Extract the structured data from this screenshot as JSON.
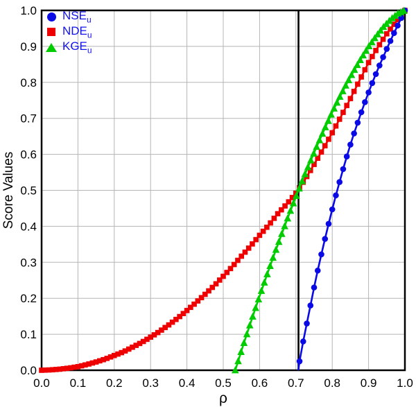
{
  "figure": {
    "background": "#ffffff",
    "frame_color": "#000000",
    "grid_color": "#b5b5b5",
    "text_color": "#000000"
  },
  "legend": {
    "text_color": "#1111ee",
    "items": [
      {
        "label": "NSE",
        "sub": "u",
        "marker": "circle",
        "color": "#0a0ae6"
      },
      {
        "label": "NDE",
        "sub": "u",
        "marker": "square",
        "color": "#ee0000"
      },
      {
        "label": "KGE",
        "sub": "u",
        "marker": "triangle",
        "color": "#00cc00"
      }
    ]
  },
  "chart_data": {
    "type": "line",
    "title": "",
    "xlabel": "ρ",
    "ylabel": "Score Values",
    "xlim": [
      0.0,
      1.0
    ],
    "ylim": [
      0.0,
      1.0
    ],
    "grid": true,
    "legend_position": "top-left",
    "xticks": [
      "0.0",
      "0.1",
      "0.2",
      "0.3",
      "0.4",
      "0.5",
      "0.6",
      "0.7",
      "0.8",
      "0.9",
      "1.0"
    ],
    "yticks": [
      "0.0",
      "0.1",
      "0.2",
      "0.3",
      "0.4",
      "0.5",
      "0.6",
      "0.7",
      "0.8",
      "0.9",
      "1.0"
    ],
    "vline": {
      "x": 0.7071,
      "color": "#000000",
      "width": 2.6,
      "zorder": 2.5
    },
    "series": [
      {
        "name": "NSE_u",
        "color": "#0a0ae6",
        "marker": "circle",
        "marker_size": 8.6,
        "marker_start": 0.71,
        "marker_step": 0.01,
        "line_width": 2.6,
        "zorder": 3,
        "points": [
          [
            0.7066,
            0.0
          ],
          [
            0.71,
            0.025
          ],
          [
            0.72,
            0.08
          ],
          [
            0.73,
            0.13
          ],
          [
            0.74,
            0.18
          ],
          [
            0.75,
            0.23
          ],
          [
            0.76,
            0.277
          ],
          [
            0.77,
            0.322
          ],
          [
            0.78,
            0.365
          ],
          [
            0.79,
            0.407
          ],
          [
            0.8,
            0.447
          ],
          [
            0.81,
            0.486
          ],
          [
            0.82,
            0.523
          ],
          [
            0.83,
            0.559
          ],
          [
            0.84,
            0.594
          ],
          [
            0.85,
            0.627
          ],
          [
            0.86,
            0.658
          ],
          [
            0.87,
            0.688
          ],
          [
            0.88,
            0.717
          ],
          [
            0.89,
            0.745
          ],
          [
            0.9,
            0.772
          ],
          [
            0.91,
            0.798
          ],
          [
            0.92,
            0.823
          ],
          [
            0.93,
            0.847
          ],
          [
            0.94,
            0.87
          ],
          [
            0.95,
            0.893
          ],
          [
            0.96,
            0.915
          ],
          [
            0.97,
            0.937
          ],
          [
            0.98,
            0.958
          ],
          [
            0.99,
            0.979
          ],
          [
            1.0,
            1.0
          ]
        ]
      },
      {
        "name": "NDE_u",
        "color": "#ee0000",
        "marker": "square",
        "marker_size": 7.6,
        "marker_start": 0.0,
        "marker_step": 0.01,
        "line_width": 2.6,
        "zorder": 2,
        "points": [
          [
            0.0,
            0.0
          ],
          [
            0.025,
            0.001
          ],
          [
            0.05,
            0.003
          ],
          [
            0.075,
            0.006
          ],
          [
            0.1,
            0.01
          ],
          [
            0.125,
            0.016
          ],
          [
            0.15,
            0.023
          ],
          [
            0.175,
            0.031
          ],
          [
            0.2,
            0.041
          ],
          [
            0.225,
            0.051
          ],
          [
            0.25,
            0.064
          ],
          [
            0.275,
            0.077
          ],
          [
            0.3,
            0.092
          ],
          [
            0.325,
            0.108
          ],
          [
            0.35,
            0.126
          ],
          [
            0.375,
            0.145
          ],
          [
            0.4,
            0.166
          ],
          [
            0.425,
            0.188
          ],
          [
            0.45,
            0.211
          ],
          [
            0.475,
            0.235
          ],
          [
            0.5,
            0.261
          ],
          [
            0.525,
            0.288
          ],
          [
            0.55,
            0.317
          ],
          [
            0.575,
            0.345
          ],
          [
            0.6,
            0.375
          ],
          [
            0.625,
            0.403
          ],
          [
            0.65,
            0.435
          ],
          [
            0.675,
            0.462
          ],
          [
            0.7,
            0.492
          ],
          [
            0.725,
            0.53
          ],
          [
            0.75,
            0.572
          ],
          [
            0.775,
            0.615
          ],
          [
            0.8,
            0.66
          ],
          [
            0.825,
            0.707
          ],
          [
            0.85,
            0.755
          ],
          [
            0.875,
            0.805
          ],
          [
            0.9,
            0.855
          ],
          [
            0.925,
            0.897
          ],
          [
            0.95,
            0.935
          ],
          [
            0.975,
            0.968
          ],
          [
            1.0,
            1.0
          ]
        ]
      },
      {
        "name": "KGE_u",
        "color": "#00cc00",
        "marker": "triangle",
        "marker_size": 10.6,
        "marker_start": 0.533,
        "marker_step": 0.008,
        "line_width": 2.6,
        "zorder": 4,
        "points": [
          [
            0.533,
            0.0
          ],
          [
            0.54,
            0.022
          ],
          [
            0.55,
            0.054
          ],
          [
            0.56,
            0.085
          ],
          [
            0.58,
            0.146
          ],
          [
            0.6,
            0.206
          ],
          [
            0.62,
            0.264
          ],
          [
            0.64,
            0.321
          ],
          [
            0.66,
            0.376
          ],
          [
            0.68,
            0.43
          ],
          [
            0.7,
            0.482
          ],
          [
            0.707,
            0.5
          ],
          [
            0.72,
            0.533
          ],
          [
            0.74,
            0.581
          ],
          [
            0.76,
            0.628
          ],
          [
            0.78,
            0.673
          ],
          [
            0.8,
            0.717
          ],
          [
            0.82,
            0.758
          ],
          [
            0.84,
            0.797
          ],
          [
            0.86,
            0.833
          ],
          [
            0.88,
            0.867
          ],
          [
            0.9,
            0.899
          ],
          [
            0.92,
            0.927
          ],
          [
            0.94,
            0.953
          ],
          [
            0.96,
            0.974
          ],
          [
            0.98,
            0.991
          ],
          [
            1.0,
            1.0
          ]
        ]
      }
    ]
  }
}
